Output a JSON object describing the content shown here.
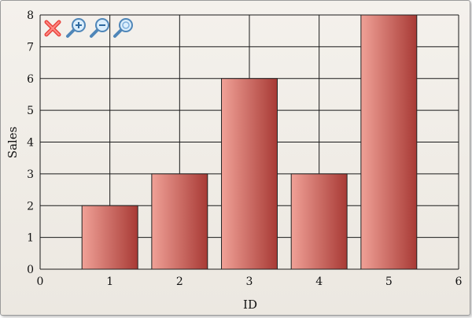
{
  "toolbar": {
    "buttons": [
      {
        "name": "reset-zoom-button",
        "icon": "close-x-icon"
      },
      {
        "name": "zoom-in-button",
        "icon": "zoom-in-icon"
      },
      {
        "name": "zoom-out-button",
        "icon": "zoom-out-icon"
      },
      {
        "name": "zoom-fit-button",
        "icon": "zoom-icon"
      }
    ]
  },
  "chart_data": {
    "type": "bar",
    "title": "",
    "xlabel": "ID",
    "ylabel": "Sales",
    "x": [
      1,
      2,
      3,
      4,
      5
    ],
    "values": [
      2,
      3,
      6,
      3,
      8
    ],
    "xlim": [
      0,
      6
    ],
    "ylim": [
      0,
      8
    ],
    "xticks": [
      0,
      1,
      2,
      3,
      4,
      5,
      6
    ],
    "yticks": [
      0,
      1,
      2,
      3,
      4,
      5,
      6,
      7,
      8
    ],
    "grid": true,
    "legend": "none",
    "colors": {
      "bar_light": "#f0a197",
      "bar_dark": "#a83a35",
      "bar_outline": "#222222",
      "grid": "#1a1a1a"
    }
  }
}
